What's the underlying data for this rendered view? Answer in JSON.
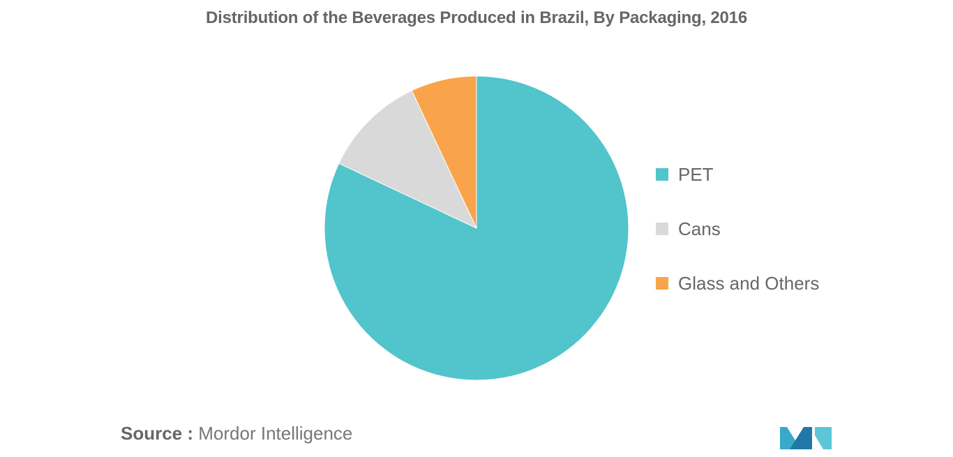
{
  "chart_data": {
    "type": "pie",
    "title": "Distribution of the Beverages Produced in Brazil, By Packaging, 2016",
    "categories": [
      "PET",
      "Cans",
      "Glass and Others"
    ],
    "values": [
      82,
      11,
      7
    ],
    "colors": [
      "#52c4cb",
      "#d9d9d9",
      "#f9a44b"
    ],
    "start_angle": "12 o'clock, clockwise",
    "legend_position": "right"
  },
  "source": {
    "prefix": "Source :",
    "text": "Mordor Intelligence"
  },
  "logo": {
    "icon": "mordor-intelligence-logo-icon",
    "colors": [
      "#3aa9c9",
      "#1f78a8",
      "#5cc6d6"
    ]
  }
}
